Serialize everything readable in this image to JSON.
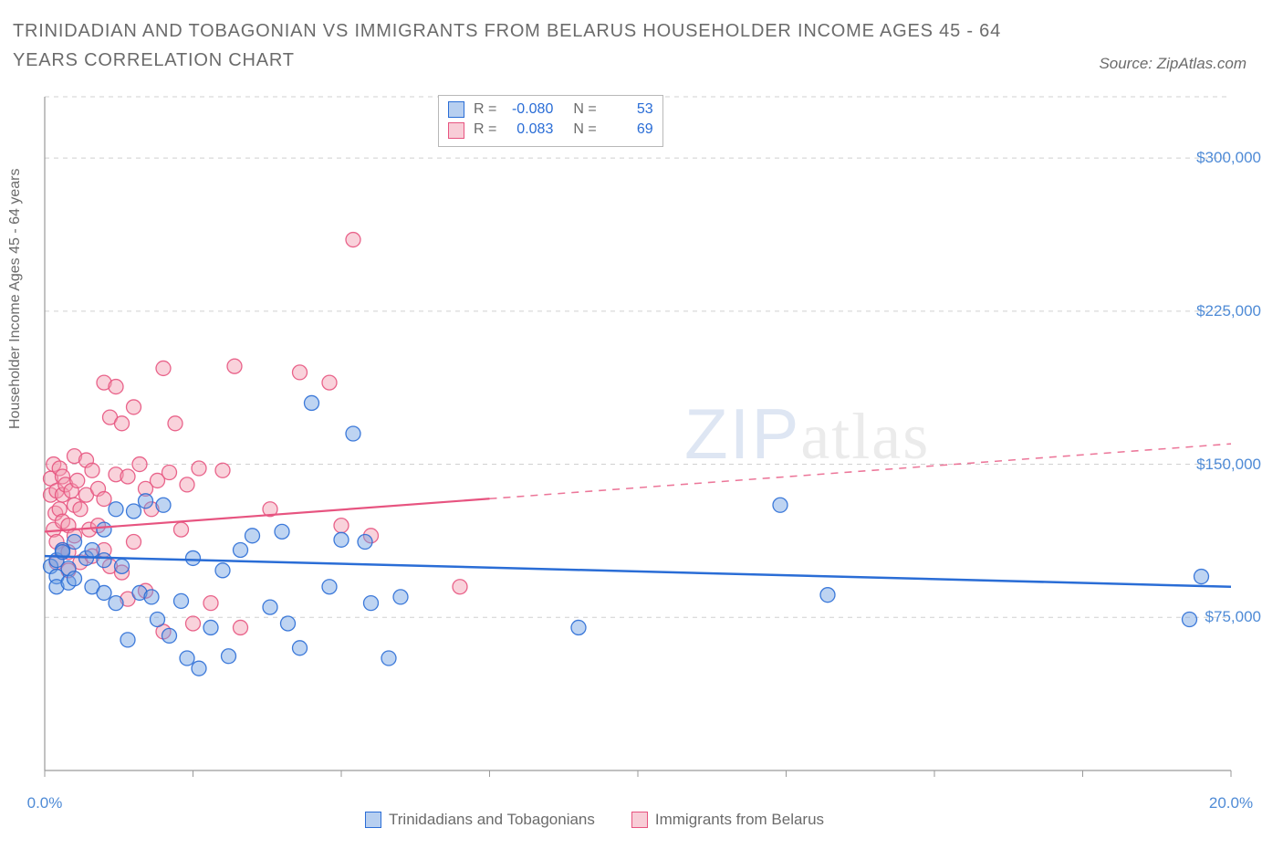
{
  "title": "TRINIDADIAN AND TOBAGONIAN VS IMMIGRANTS FROM BELARUS HOUSEHOLDER INCOME AGES 45 - 64 YEARS CORRELATION CHART",
  "source_label": "Source: ZipAtlas.com",
  "watermark": {
    "part1": "ZIP",
    "part2": "atlas"
  },
  "chart": {
    "type": "scatter",
    "background_color": "#ffffff",
    "grid_color": "#d0d0d0",
    "axis_color": "#9a9a9a",
    "text_color": "#6b6b6b",
    "tick_label_color": "#4f8bd6",
    "x_axis": {
      "min": 0,
      "max": 20,
      "unit": "%",
      "tick_positions": [
        0,
        2.5,
        5,
        7.5,
        10,
        12.5,
        15,
        17.5,
        20
      ],
      "labels": {
        "0": "0.0%",
        "20": "20.0%"
      }
    },
    "y_axis": {
      "title": "Householder Income Ages 45 - 64 years",
      "min": 0,
      "max": 330000,
      "gridlines": [
        75000,
        150000,
        225000,
        300000
      ],
      "labels": {
        "75000": "$75,000",
        "150000": "$150,000",
        "225000": "$225,000",
        "300000": "$300,000"
      }
    },
    "marker_radius": 8,
    "marker_opacity": 0.45,
    "marker_stroke_opacity": 0.9,
    "series": [
      {
        "id": "tt",
        "label": "Trinidadians and Tobagonians",
        "color_fill": "#6fa0e2",
        "color_stroke": "#2a6dd6",
        "r": "-0.080",
        "n": "53",
        "trend": {
          "y_at_xmin": 105000,
          "y_at_xmax": 90000,
          "solid_end_x": 20,
          "line_width": 2.5
        },
        "points": [
          [
            0.1,
            100000
          ],
          [
            0.2,
            103000
          ],
          [
            0.3,
            108000
          ],
          [
            0.2,
            95000
          ],
          [
            0.2,
            90000
          ],
          [
            0.3,
            107000
          ],
          [
            0.4,
            99000
          ],
          [
            0.4,
            92000
          ],
          [
            0.5,
            112000
          ],
          [
            0.5,
            94000
          ],
          [
            0.7,
            104000
          ],
          [
            0.8,
            108000
          ],
          [
            0.8,
            90000
          ],
          [
            1.0,
            118000
          ],
          [
            1.0,
            87000
          ],
          [
            1.0,
            103000
          ],
          [
            1.2,
            128000
          ],
          [
            1.2,
            82000
          ],
          [
            1.3,
            100000
          ],
          [
            1.4,
            64000
          ],
          [
            1.5,
            127000
          ],
          [
            1.6,
            87000
          ],
          [
            1.7,
            132000
          ],
          [
            1.8,
            85000
          ],
          [
            1.9,
            74000
          ],
          [
            2.0,
            130000
          ],
          [
            2.1,
            66000
          ],
          [
            2.3,
            83000
          ],
          [
            2.4,
            55000
          ],
          [
            2.5,
            104000
          ],
          [
            2.6,
            50000
          ],
          [
            2.8,
            70000
          ],
          [
            3.0,
            98000
          ],
          [
            3.1,
            56000
          ],
          [
            3.3,
            108000
          ],
          [
            3.5,
            115000
          ],
          [
            3.8,
            80000
          ],
          [
            4.0,
            117000
          ],
          [
            4.1,
            72000
          ],
          [
            4.3,
            60000
          ],
          [
            4.5,
            180000
          ],
          [
            4.8,
            90000
          ],
          [
            5.0,
            113000
          ],
          [
            5.2,
            165000
          ],
          [
            5.4,
            112000
          ],
          [
            5.5,
            82000
          ],
          [
            5.8,
            55000
          ],
          [
            6.0,
            85000
          ],
          [
            9.0,
            70000
          ],
          [
            12.4,
            130000
          ],
          [
            13.2,
            86000
          ],
          [
            19.3,
            74000
          ],
          [
            19.5,
            95000
          ]
        ]
      },
      {
        "id": "bel",
        "label": "Immigrants from Belarus",
        "color_fill": "#f29bb0",
        "color_stroke": "#e75480",
        "r": "0.083",
        "n": "69",
        "trend": {
          "y_at_xmin": 117000,
          "y_at_xmax": 160000,
          "solid_end_x": 7.5,
          "line_width": 2.2
        },
        "points": [
          [
            0.1,
            143000
          ],
          [
            0.1,
            135000
          ],
          [
            0.15,
            118000
          ],
          [
            0.15,
            150000
          ],
          [
            0.18,
            126000
          ],
          [
            0.2,
            137000
          ],
          [
            0.2,
            112000
          ],
          [
            0.2,
            102000
          ],
          [
            0.25,
            148000
          ],
          [
            0.25,
            128000
          ],
          [
            0.3,
            144000
          ],
          [
            0.3,
            135000
          ],
          [
            0.3,
            122000
          ],
          [
            0.3,
            108000
          ],
          [
            0.35,
            140000
          ],
          [
            0.4,
            120000
          ],
          [
            0.4,
            107000
          ],
          [
            0.4,
            98000
          ],
          [
            0.45,
            137000
          ],
          [
            0.5,
            154000
          ],
          [
            0.5,
            130000
          ],
          [
            0.5,
            115000
          ],
          [
            0.55,
            142000
          ],
          [
            0.6,
            128000
          ],
          [
            0.6,
            102000
          ],
          [
            0.7,
            152000
          ],
          [
            0.7,
            135000
          ],
          [
            0.75,
            118000
          ],
          [
            0.8,
            147000
          ],
          [
            0.8,
            105000
          ],
          [
            0.9,
            138000
          ],
          [
            0.9,
            120000
          ],
          [
            1.0,
            190000
          ],
          [
            1.0,
            133000
          ],
          [
            1.0,
            108000
          ],
          [
            1.1,
            173000
          ],
          [
            1.1,
            100000
          ],
          [
            1.2,
            188000
          ],
          [
            1.2,
            145000
          ],
          [
            1.3,
            170000
          ],
          [
            1.3,
            97000
          ],
          [
            1.4,
            144000
          ],
          [
            1.4,
            84000
          ],
          [
            1.5,
            178000
          ],
          [
            1.5,
            112000
          ],
          [
            1.6,
            150000
          ],
          [
            1.7,
            138000
          ],
          [
            1.7,
            88000
          ],
          [
            1.8,
            128000
          ],
          [
            1.9,
            142000
          ],
          [
            2.0,
            197000
          ],
          [
            2.0,
            68000
          ],
          [
            2.1,
            146000
          ],
          [
            2.2,
            170000
          ],
          [
            2.3,
            118000
          ],
          [
            2.4,
            140000
          ],
          [
            2.5,
            72000
          ],
          [
            2.6,
            148000
          ],
          [
            2.8,
            82000
          ],
          [
            3.0,
            147000
          ],
          [
            3.2,
            198000
          ],
          [
            3.3,
            70000
          ],
          [
            3.8,
            128000
          ],
          [
            4.3,
            195000
          ],
          [
            4.8,
            190000
          ],
          [
            5.2,
            260000
          ],
          [
            5.0,
            120000
          ],
          [
            5.5,
            115000
          ],
          [
            7.0,
            90000
          ]
        ]
      }
    ],
    "legend_top_labels": {
      "r": "R =",
      "n": "N ="
    }
  }
}
